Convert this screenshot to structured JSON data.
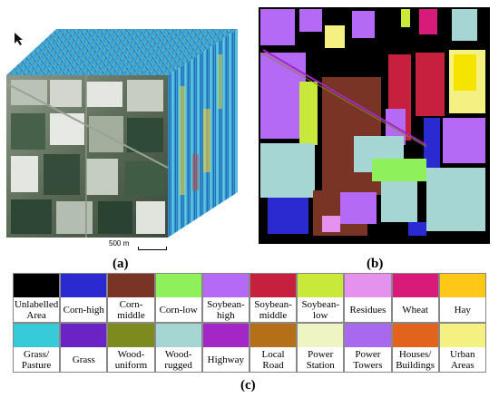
{
  "captions": {
    "a": "(a)",
    "b": "(b)",
    "c": "(c)"
  },
  "scale_bar": {
    "label": "500 m"
  },
  "colors": {
    "cube_face": "#3b86c6",
    "cube_hot": "#f5d83a",
    "map_bg": "#000000"
  },
  "legend": {
    "row1": [
      {
        "label": "Unlabelled\nArea",
        "color": "#000000"
      },
      {
        "label": "Corn-high",
        "color": "#2b2ad0"
      },
      {
        "label": "Corn-\nmiddle",
        "color": "#7a3426"
      },
      {
        "label": "Corn-low",
        "color": "#8ef05a"
      },
      {
        "label": "Soybean-\nhigh",
        "color": "#b56af5"
      },
      {
        "label": "Soybean-\nmiddle",
        "color": "#c7203c"
      },
      {
        "label": "Soybean-\nlow",
        "color": "#c8e83a"
      },
      {
        "label": "Residues",
        "color": "#e592ee"
      },
      {
        "label": "Wheat",
        "color": "#d81b78"
      },
      {
        "label": "Hay",
        "color": "#ffc818"
      }
    ],
    "row2": [
      {
        "label": "Grass/\nPasture",
        "color": "#36c9d8"
      },
      {
        "label": "Grass",
        "color": "#6a24c4"
      },
      {
        "label": "Wood-\nuniform",
        "color": "#7d8a1e"
      },
      {
        "label": "Wood-\nrugged",
        "color": "#a6d6d3"
      },
      {
        "label": "Highway",
        "color": "#a227c4"
      },
      {
        "label": "Local\nRoad",
        "color": "#b56f18"
      },
      {
        "label": "Power\nStation",
        "color": "#eef5c2"
      },
      {
        "label": "Power\nTowers",
        "color": "#a868f0"
      },
      {
        "label": "Houses/\nBuildings",
        "color": "#e2641c"
      },
      {
        "label": "Urban\nAreas",
        "color": "#f4f082"
      }
    ]
  }
}
